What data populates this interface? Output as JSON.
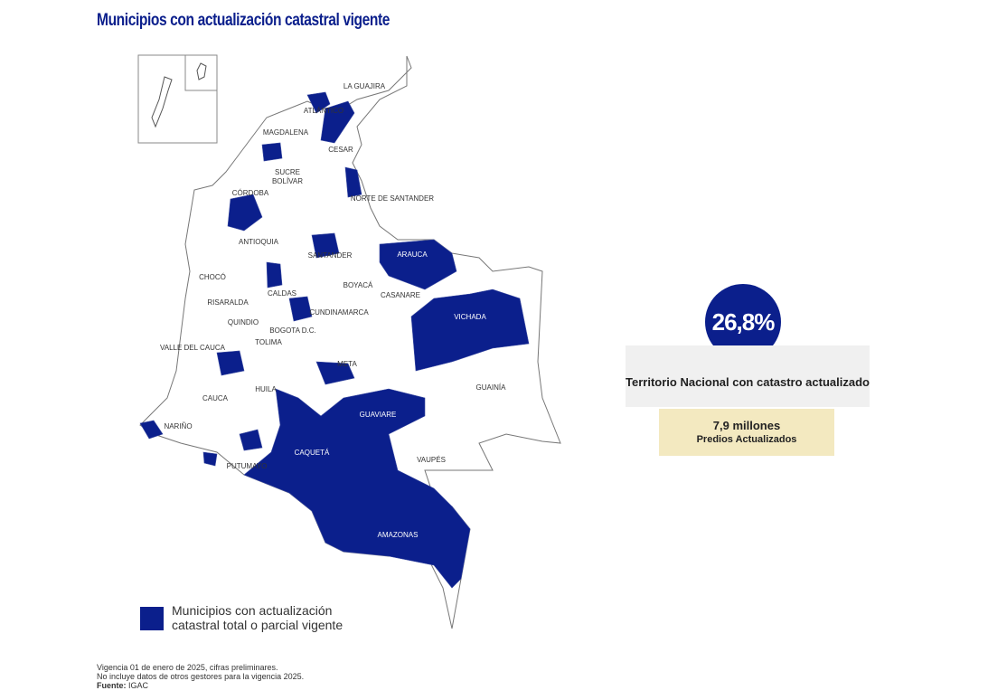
{
  "header": {
    "title": "Municipios con actualización catastral vigente"
  },
  "map": {
    "departments": [
      "LA GUAJIRA",
      "ATLÁNTICO",
      "MAGDALENA",
      "CESAR",
      "SUCRE",
      "BOLÍVAR",
      "CÓRDOBA",
      "NORTE DE SANTANDER",
      "ANTIOQUIA",
      "SANTANDER",
      "ARAUCA",
      "CHOCÓ",
      "BOYACÁ",
      "CASANARE",
      "CALDAS",
      "RISARALDA",
      "CUNDINAMARCA",
      "VICHADA",
      "QUINDIO",
      "BOGOTA D.C.",
      "VALLE DEL CAUCA",
      "TOLIMA",
      "META",
      "GUAINÍA",
      "CAUCA",
      "HUILA",
      "GUAVIARE",
      "NARIÑO",
      "CAQUETÁ",
      "VAUPÉS",
      "PUTUMAYO",
      "AMAZONAS"
    ]
  },
  "stats": {
    "percent": "26,8%",
    "caption": "Territorio Nacional con catastro actualizado",
    "predios_value": "7,9 millones",
    "predios_label": "Predios Actualizados"
  },
  "legend": {
    "line1": "Municipios con actualización",
    "line2": "catastral total o parcial vigente"
  },
  "footer": {
    "note1": "Vigencia 01 de enero de 2025, cifras preliminares.",
    "note2": "No incluye datos de otros gestores para la vigencia 2025.",
    "source_label": "Fuente:",
    "source": "IGAC"
  }
}
